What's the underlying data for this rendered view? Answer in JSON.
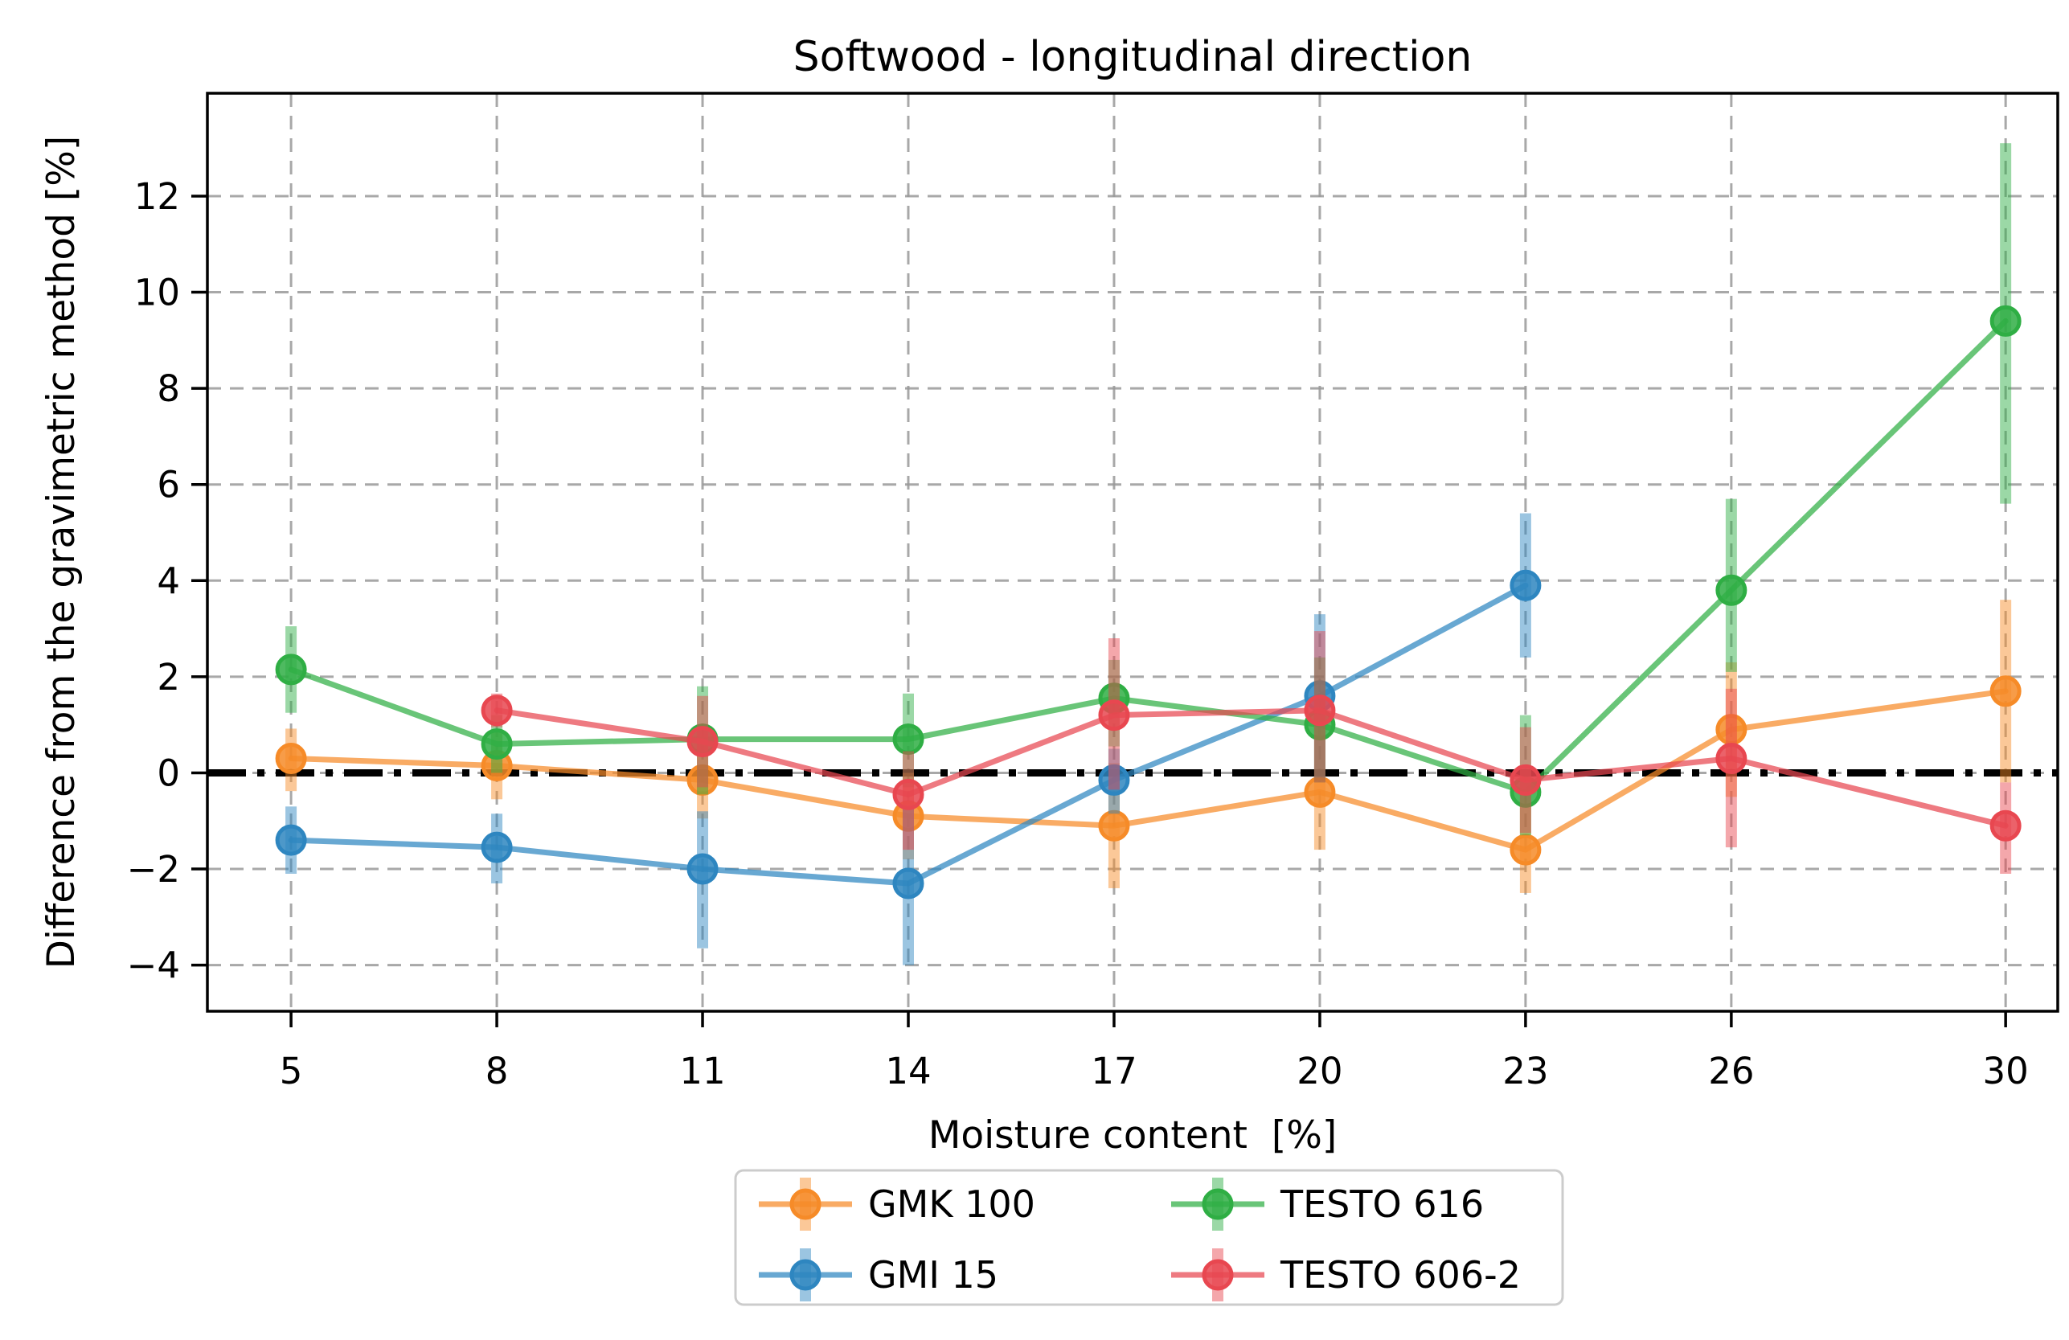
{
  "page": {
    "background": "#ffffff",
    "frame_color": "#000000",
    "grid_color": "#999999",
    "legend_border_color": "#cccccc"
  },
  "chart_data": {
    "type": "line",
    "title": "Softwood - longitudinal direction",
    "xlabel": "Moisture content  [%]",
    "ylabel": "Difference from the gravimetric method [%]",
    "x_ticks": [
      5,
      8,
      11,
      14,
      17,
      20,
      23,
      26,
      30
    ],
    "x_tick_labels": [
      "5",
      "8",
      "11",
      "14",
      "17",
      "20",
      "23",
      "26",
      "30"
    ],
    "y_ticks": [
      12,
      10,
      8,
      6,
      4,
      2,
      0,
      -2,
      -4
    ],
    "y_tick_labels": [
      "12",
      "10",
      "8",
      "6",
      "4",
      "2",
      "0",
      "−2",
      "−4"
    ],
    "xlim": [
      3.78,
      30.76
    ],
    "ylim": [
      -4.96,
      14.14
    ],
    "grid": true,
    "grid_style": "dashed",
    "zero_line": {
      "y": 0,
      "style": "dash-dot",
      "color": "#000000"
    },
    "legend_position": "below-center",
    "series": [
      {
        "name": "GMK 100",
        "color": "#F68B28",
        "points": [
          {
            "x": 5,
            "y": 0.3,
            "lo": -0.38,
            "hi": 0.92
          },
          {
            "x": 8,
            "y": 0.15,
            "lo": -0.55,
            "hi": 0.85
          },
          {
            "x": 11,
            "y": -0.15,
            "lo": -0.95,
            "hi": 0.65
          },
          {
            "x": 14,
            "y": -0.9,
            "lo": -1.8,
            "hi": 0.0
          },
          {
            "x": 17,
            "y": -1.1,
            "lo": -2.4,
            "hi": 0.2
          },
          {
            "x": 20,
            "y": -0.4,
            "lo": -1.6,
            "hi": 0.8
          },
          {
            "x": 23,
            "y": -1.6,
            "lo": -2.5,
            "hi": -0.7
          },
          {
            "x": 26,
            "y": 0.9,
            "lo": -0.5,
            "hi": 2.3
          },
          {
            "x": 30,
            "y": 1.7,
            "lo": -0.2,
            "hi": 3.6
          }
        ]
      },
      {
        "name": "GMI 15",
        "color": "#2E86C0",
        "points": [
          {
            "x": 5,
            "y": -1.4,
            "lo": -2.1,
            "hi": -0.7
          },
          {
            "x": 8,
            "y": -1.55,
            "lo": -2.3,
            "hi": -0.85
          },
          {
            "x": 11,
            "y": -2.0,
            "lo": -3.65,
            "hi": -0.8
          },
          {
            "x": 14,
            "y": -2.3,
            "lo": -4.0,
            "hi": -0.7
          },
          {
            "x": 17,
            "y": -0.15,
            "lo": -0.85,
            "hi": 0.5
          },
          {
            "x": 20,
            "y": 1.6,
            "lo": -0.1,
            "hi": 3.3
          },
          {
            "x": 23,
            "y": 3.9,
            "lo": 2.4,
            "hi": 5.4
          }
        ]
      },
      {
        "name": "TESTO 616",
        "color": "#2FAE44",
        "points": [
          {
            "x": 5,
            "y": 2.15,
            "lo": 1.25,
            "hi": 3.05
          },
          {
            "x": 8,
            "y": 0.6,
            "lo": 0.0,
            "hi": 1.2
          },
          {
            "x": 11,
            "y": 0.7,
            "lo": -0.45,
            "hi": 1.8
          },
          {
            "x": 14,
            "y": 0.7,
            "lo": -0.3,
            "hi": 1.65
          },
          {
            "x": 17,
            "y": 1.55,
            "lo": 0.55,
            "hi": 2.35
          },
          {
            "x": 20,
            "y": 1.0,
            "lo": -0.2,
            "hi": 2.4
          },
          {
            "x": 23,
            "y": -0.4,
            "lo": -1.3,
            "hi": 1.2
          },
          {
            "x": 26,
            "y": 3.8,
            "lo": 2.1,
            "hi": 5.7
          },
          {
            "x": 30,
            "y": 9.4,
            "lo": 5.6,
            "hi": 13.1
          }
        ]
      },
      {
        "name": "TESTO 606-2",
        "color": "#E84750",
        "points": [
          {
            "x": 8,
            "y": 1.3,
            "lo": 0.95,
            "hi": 1.65
          },
          {
            "x": 11,
            "y": 0.65,
            "lo": -0.3,
            "hi": 1.6
          },
          {
            "x": 14,
            "y": -0.45,
            "lo": -1.6,
            "hi": 0.45
          },
          {
            "x": 17,
            "y": 1.2,
            "lo": -0.35,
            "hi": 2.8
          },
          {
            "x": 20,
            "y": 1.3,
            "lo": -0.2,
            "hi": 2.95
          },
          {
            "x": 23,
            "y": -0.15,
            "lo": -1.25,
            "hi": 0.95
          },
          {
            "x": 26,
            "y": 0.3,
            "lo": -1.55,
            "hi": 1.75
          },
          {
            "x": 30,
            "y": -1.1,
            "lo": -2.1,
            "hi": -0.2
          }
        ]
      }
    ]
  },
  "legend": {
    "columns": 2,
    "order": [
      "GMK 100",
      "GMI 15",
      "TESTO 616",
      "TESTO 606-2"
    ]
  }
}
